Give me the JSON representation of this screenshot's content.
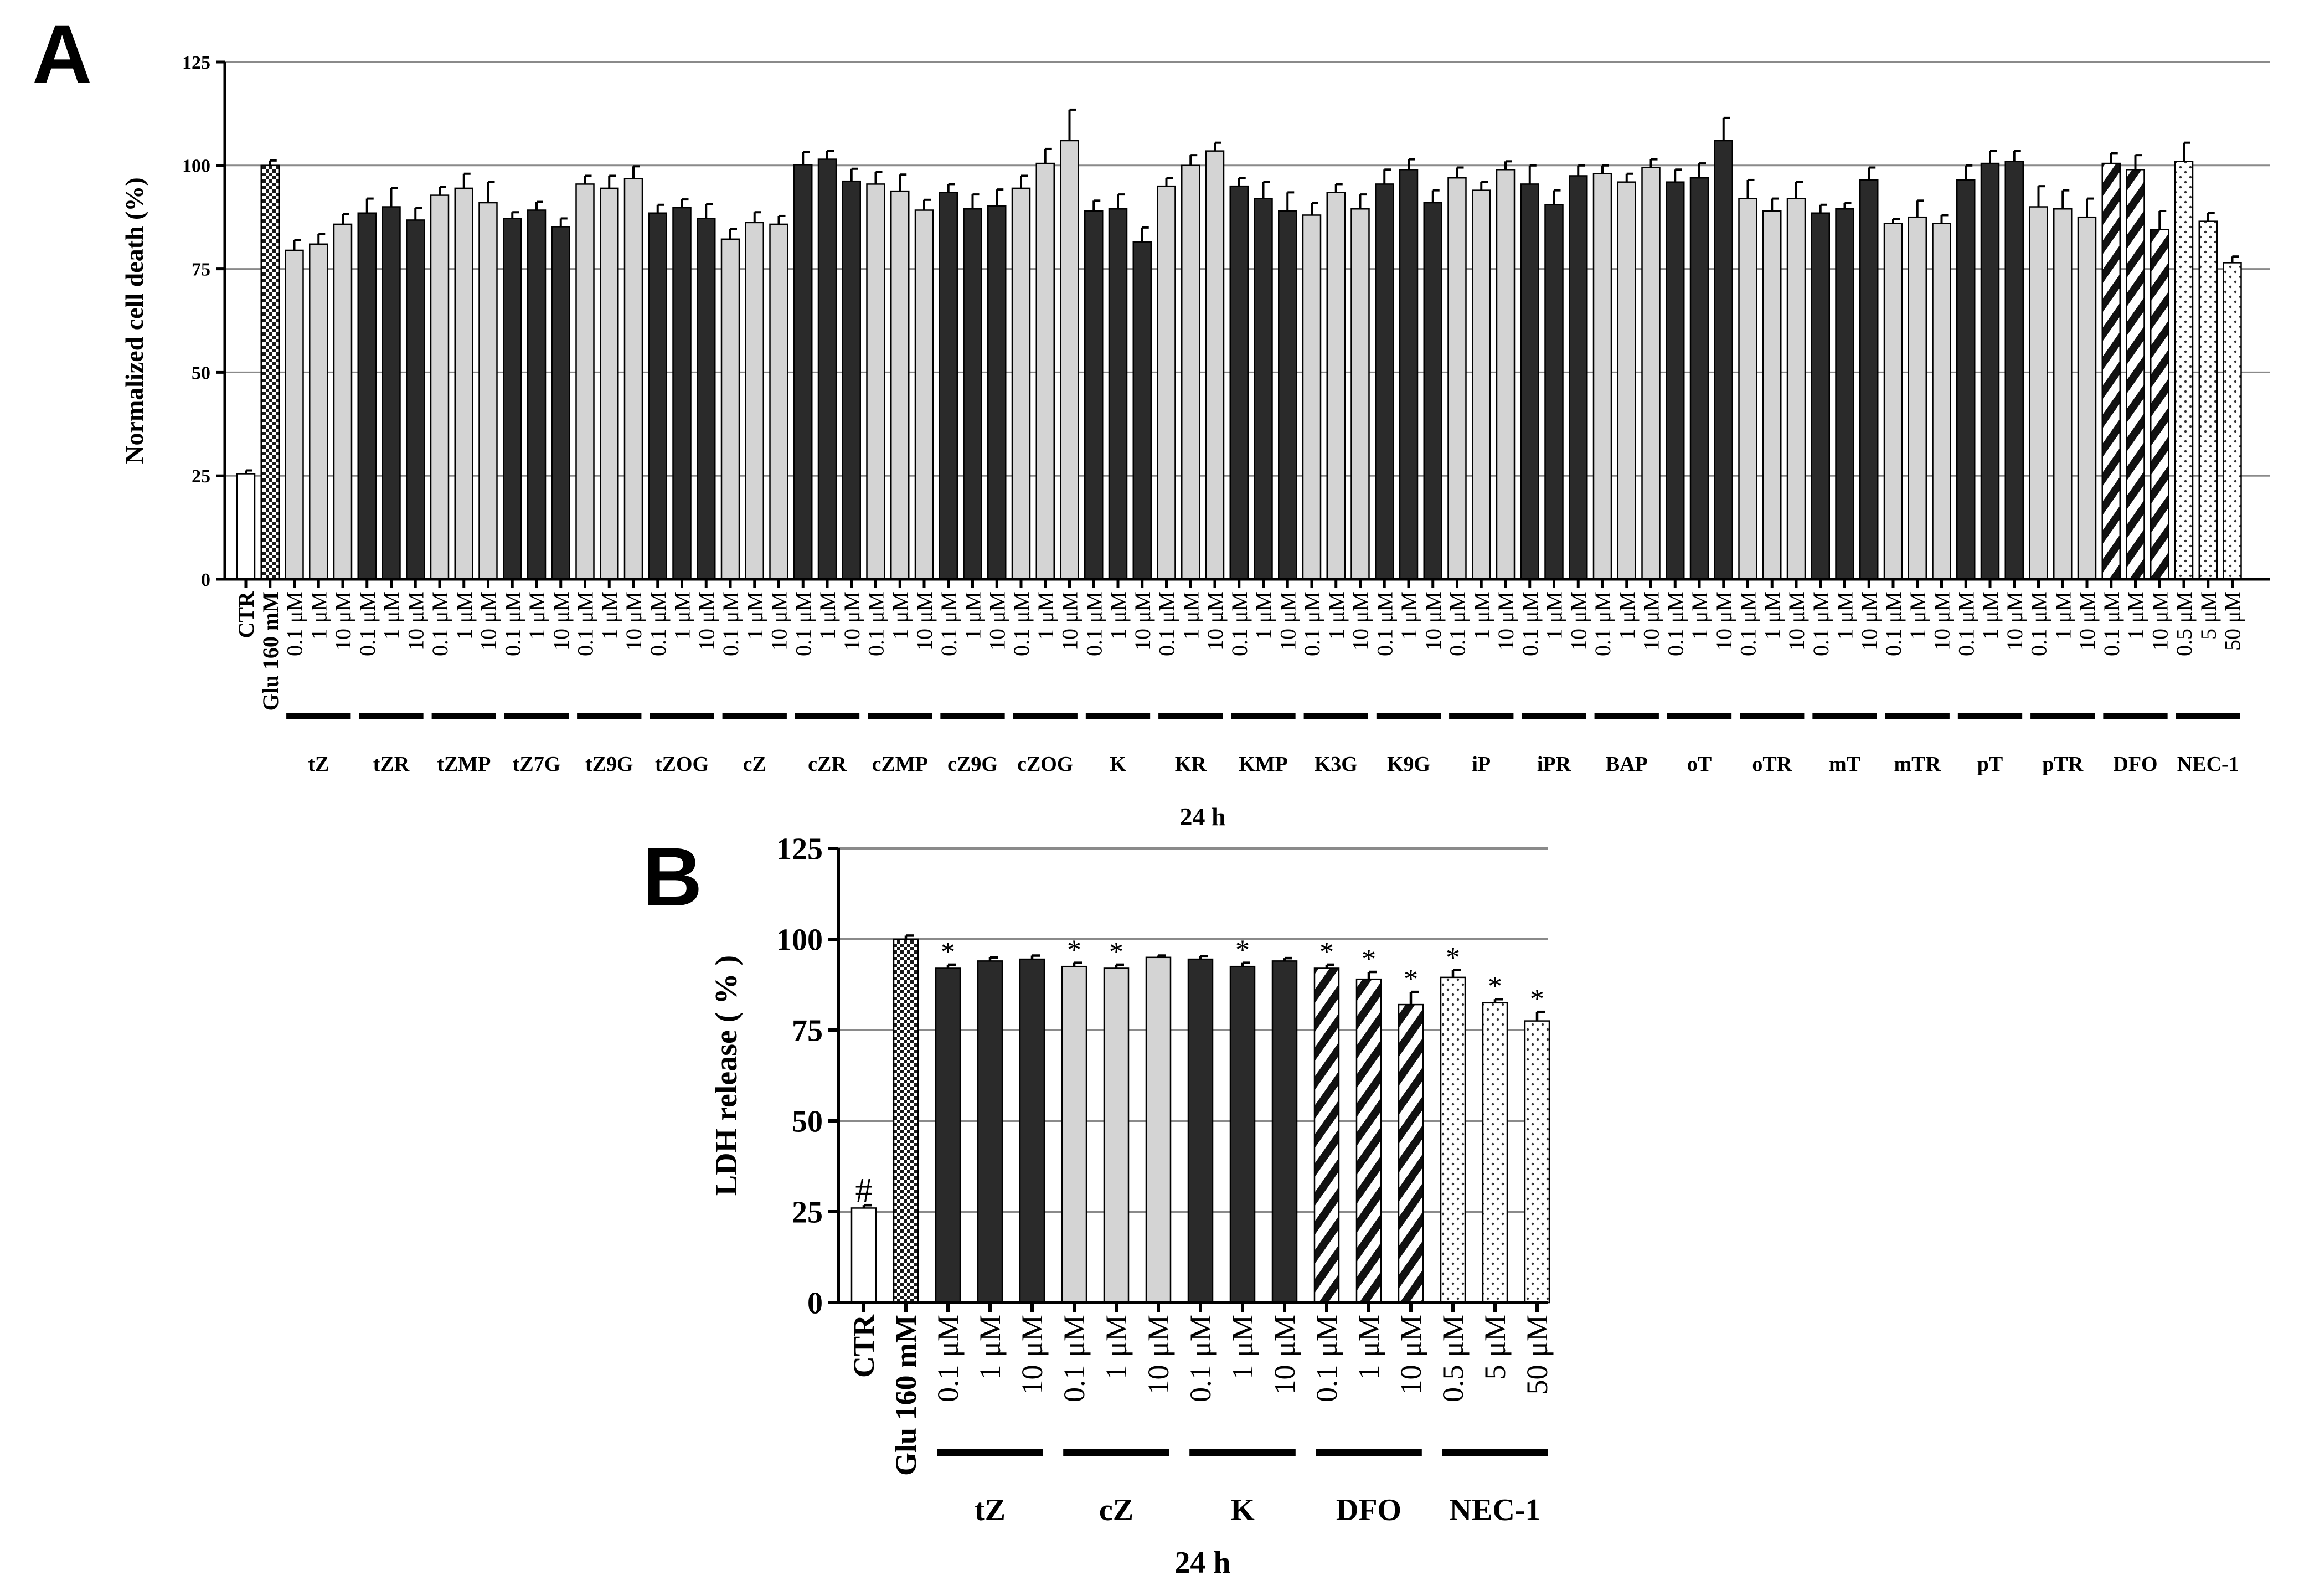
{
  "chart_data": [
    {
      "panel_label": "A",
      "type": "bar",
      "ylabel": "Normalized cell death (%)",
      "xlabel": "24 h",
      "ylim": [
        0,
        125
      ],
      "yticks": [
        0,
        25,
        50,
        75,
        100,
        125
      ],
      "grid": "horizontal",
      "fill_colors": {
        "light": "#d4d4d4",
        "dark": "#2a2a2a",
        "white": "#ffffff",
        "hatch": "hatch",
        "dots": "dots",
        "checker": "checker"
      },
      "controls": [
        {
          "label": "CTR",
          "value": 25.5,
          "error": 0.8,
          "fill": "white"
        },
        {
          "label": "Glu 160 mM",
          "value": 100,
          "error": 1.2,
          "fill": "checker"
        }
      ],
      "groups": [
        {
          "name": "tZ",
          "fill": "light",
          "doses": [
            "0.1 μM",
            "1 μM",
            "10 μM"
          ],
          "values": [
            79.5,
            81,
            85.8
          ],
          "errors": [
            2.5,
            2.5,
            2.5
          ]
        },
        {
          "name": "tZR",
          "fill": "dark",
          "doses": [
            "0.1 μM",
            "1 μM",
            "10 μM"
          ],
          "values": [
            88.5,
            90,
            86.8
          ],
          "errors": [
            3.5,
            4.5,
            3
          ]
        },
        {
          "name": "tZMP",
          "fill": "light",
          "doses": [
            "0.1 μM",
            "1 μM",
            "10 μM"
          ],
          "values": [
            92.8,
            94.5,
            91
          ],
          "errors": [
            2,
            3.5,
            5
          ]
        },
        {
          "name": "tZ7G",
          "fill": "dark",
          "doses": [
            "0.1 μM",
            "1 μM",
            "10 μM"
          ],
          "values": [
            87.2,
            89.2,
            85.2
          ],
          "errors": [
            1.5,
            2,
            2
          ]
        },
        {
          "name": "tZ9G",
          "fill": "light",
          "doses": [
            "0.1 μM",
            "1 μM",
            "10 μM"
          ],
          "values": [
            95.5,
            94.5,
            96.8
          ],
          "errors": [
            2,
            3,
            3
          ]
        },
        {
          "name": "tZOG",
          "fill": "dark",
          "doses": [
            "0.1 μM",
            "1 μM",
            "10 μM"
          ],
          "values": [
            88.5,
            89.8,
            87.2
          ],
          "errors": [
            2,
            2,
            3.5
          ]
        },
        {
          "name": "cZ",
          "fill": "light",
          "doses": [
            "0.1 μM",
            "1 μM",
            "10 μM"
          ],
          "values": [
            82.2,
            86.2,
            85.8
          ],
          "errors": [
            2.5,
            2.5,
            2
          ]
        },
        {
          "name": "cZR",
          "fill": "dark",
          "doses": [
            "0.1 μM",
            "1 μM",
            "10 μM"
          ],
          "values": [
            100.2,
            101.5,
            96.2
          ],
          "errors": [
            3,
            2,
            3
          ]
        },
        {
          "name": "cZMP",
          "fill": "light",
          "doses": [
            "0.1 μM",
            "1 μM",
            "10 μM"
          ],
          "values": [
            95.5,
            93.8,
            89.2
          ],
          "errors": [
            3,
            4,
            2.5
          ]
        },
        {
          "name": "cZ9G",
          "fill": "dark",
          "doses": [
            "0.1 μM",
            "1 μM",
            "10 μM"
          ],
          "values": [
            93.5,
            89.5,
            90.2
          ],
          "errors": [
            2,
            3.5,
            4
          ]
        },
        {
          "name": "cZOG",
          "fill": "light",
          "doses": [
            "0.1 μM",
            "1 μM",
            "10 μM"
          ],
          "values": [
            94.5,
            100.5,
            106
          ],
          "errors": [
            3,
            3.5,
            7.5
          ]
        },
        {
          "name": "K",
          "fill": "dark",
          "doses": [
            "0.1 μM",
            "1 μM",
            "10 μM"
          ],
          "values": [
            89,
            89.5,
            81.5
          ],
          "errors": [
            2.5,
            3.5,
            3.5
          ]
        },
        {
          "name": "KR",
          "fill": "light",
          "doses": [
            "0.1 μM",
            "1 μM",
            "10 μM"
          ],
          "values": [
            95,
            100,
            103.5
          ],
          "errors": [
            2,
            2.5,
            2
          ]
        },
        {
          "name": "KMP",
          "fill": "dark",
          "doses": [
            "0.1 μM",
            "1 μM",
            "10 μM"
          ],
          "values": [
            95,
            92,
            89
          ],
          "errors": [
            2,
            4,
            4.5
          ]
        },
        {
          "name": "K3G",
          "fill": "light",
          "doses": [
            "0.1 μM",
            "1 μM",
            "10 μM"
          ],
          "values": [
            88,
            93.5,
            89.5
          ],
          "errors": [
            3,
            2,
            3.5
          ]
        },
        {
          "name": "K9G",
          "fill": "dark",
          "doses": [
            "0.1 μM",
            "1 μM",
            "10 μM"
          ],
          "values": [
            95.5,
            99,
            91
          ],
          "errors": [
            3.5,
            2.5,
            3
          ]
        },
        {
          "name": "iP",
          "fill": "light",
          "doses": [
            "0.1 μM",
            "1 μM",
            "10 μM"
          ],
          "values": [
            97,
            94,
            99
          ],
          "errors": [
            2.5,
            2,
            2
          ]
        },
        {
          "name": "iPR",
          "fill": "dark",
          "doses": [
            "0.1 μM",
            "1 μM",
            "10 μM"
          ],
          "values": [
            95.5,
            90.5,
            97.5
          ],
          "errors": [
            4.5,
            3.5,
            2.5
          ]
        },
        {
          "name": "BAP",
          "fill": "light",
          "doses": [
            "0.1 μM",
            "1 μM",
            "10 μM"
          ],
          "values": [
            98,
            96,
            99.5
          ],
          "errors": [
            2,
            2,
            2
          ]
        },
        {
          "name": "oT",
          "fill": "dark",
          "doses": [
            "0.1 μM",
            "1 μM",
            "10 μM"
          ],
          "values": [
            96,
            97,
            106
          ],
          "errors": [
            3,
            3.5,
            5.5
          ]
        },
        {
          "name": "oTR",
          "fill": "light",
          "doses": [
            "0.1 μM",
            "1 μM",
            "10 μM"
          ],
          "values": [
            92,
            89,
            92
          ],
          "errors": [
            4.5,
            3,
            4
          ]
        },
        {
          "name": "mT",
          "fill": "dark",
          "doses": [
            "0.1 μM",
            "1 μM",
            "10 μM"
          ],
          "values": [
            88.5,
            89.5,
            96.5
          ],
          "errors": [
            2,
            1.5,
            3
          ]
        },
        {
          "name": "mTR",
          "fill": "light",
          "doses": [
            "0.1 μM",
            "1 μM",
            "10 μM"
          ],
          "values": [
            86,
            87.5,
            86
          ],
          "errors": [
            1,
            4,
            2
          ]
        },
        {
          "name": "pT",
          "fill": "dark",
          "doses": [
            "0.1 μM",
            "1 μM",
            "10 μM"
          ],
          "values": [
            96.5,
            100.5,
            101
          ],
          "errors": [
            3.5,
            3,
            2.5
          ]
        },
        {
          "name": "pTR",
          "fill": "light",
          "doses": [
            "0.1 μM",
            "1 μM",
            "10 μM"
          ],
          "values": [
            90,
            89.5,
            87.5
          ],
          "errors": [
            5,
            4.5,
            4.5
          ]
        },
        {
          "name": "DFO",
          "fill": "hatch",
          "doses": [
            "0.1 μM",
            "1 μM",
            "10 μM"
          ],
          "values": [
            100.5,
            99,
            84.5
          ],
          "errors": [
            2.5,
            3.5,
            4.5
          ]
        },
        {
          "name": "NEC-1",
          "fill": "dots",
          "doses": [
            "0.5 μM",
            "5 μM",
            "50 μM"
          ],
          "values": [
            101,
            86.5,
            76.5
          ],
          "errors": [
            4.5,
            2,
            1.5
          ]
        }
      ]
    },
    {
      "panel_label": "B",
      "type": "bar",
      "ylabel": "LDH release ( % )",
      "xlabel": "24 h",
      "ylim": [
        0,
        125
      ],
      "yticks": [
        0,
        25,
        50,
        75,
        100,
        125
      ],
      "grid": "horizontal",
      "controls": [
        {
          "label": "CTR",
          "value": 26,
          "error": 0.8,
          "fill": "white",
          "annotation": "#"
        },
        {
          "label": "Glu 160 mM",
          "value": 100,
          "error": 1,
          "fill": "checker",
          "annotation": ""
        }
      ],
      "groups": [
        {
          "name": "tZ",
          "fill": "dark",
          "doses": [
            "0.1 μM",
            "1 μM",
            "10 μM"
          ],
          "values": [
            92,
            94,
            94.5
          ],
          "errors": [
            1,
            1,
            1
          ],
          "annotations": [
            "*",
            "",
            ""
          ]
        },
        {
          "name": "cZ",
          "fill": "light",
          "doses": [
            "0.1 μM",
            "1 μM",
            "10 μM"
          ],
          "values": [
            92.5,
            92,
            95
          ],
          "errors": [
            1,
            1,
            0.5
          ],
          "annotations": [
            "*",
            "*",
            ""
          ]
        },
        {
          "name": "K",
          "fill": "dark",
          "doses": [
            "0.1 μM",
            "1 μM",
            "10 μM"
          ],
          "values": [
            94.5,
            92.5,
            94
          ],
          "errors": [
            0.8,
            1,
            0.8
          ],
          "annotations": [
            "",
            "*",
            ""
          ]
        },
        {
          "name": "DFO",
          "fill": "hatch",
          "doses": [
            "0.1 μM",
            "1 μM",
            "10 μM"
          ],
          "values": [
            92,
            89,
            82
          ],
          "errors": [
            1,
            2,
            3.5
          ],
          "annotations": [
            "*",
            "*",
            "*"
          ]
        },
        {
          "name": "NEC-1",
          "fill": "dots",
          "doses": [
            "0.5 μM",
            "5 μM",
            "50 μM"
          ],
          "values": [
            89.5,
            82.5,
            77.5
          ],
          "errors": [
            2,
            1,
            2.5
          ],
          "annotations": [
            "*",
            "*",
            "*"
          ]
        }
      ]
    }
  ]
}
